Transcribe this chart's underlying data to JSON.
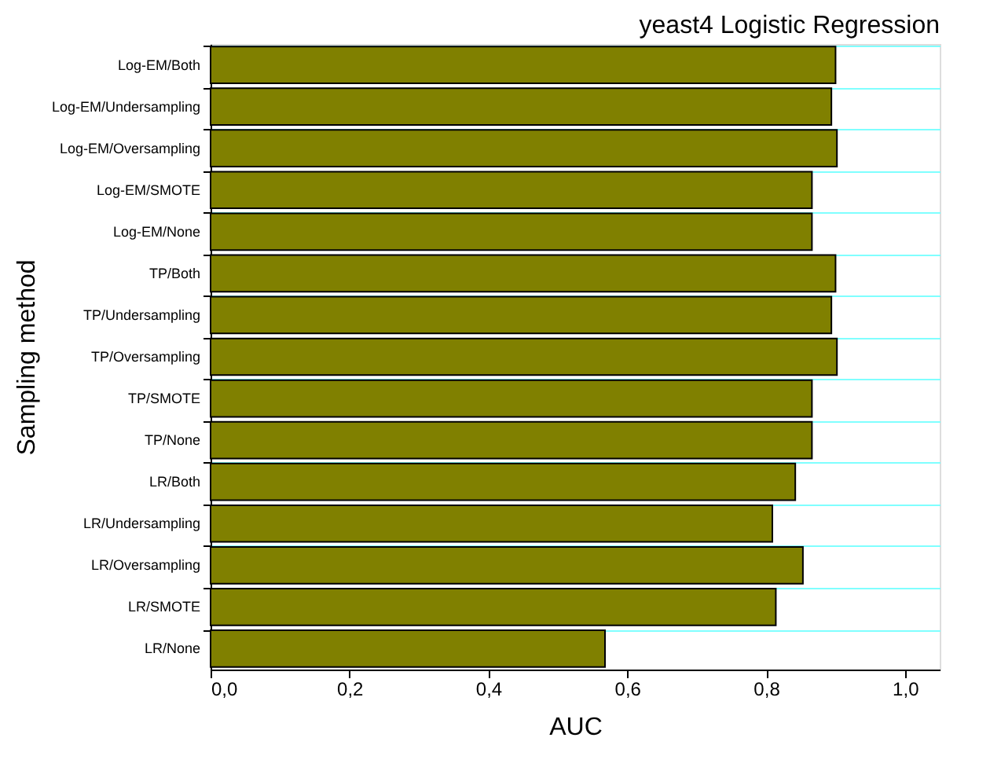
{
  "chart_data": {
    "type": "bar",
    "orientation": "horizontal",
    "title": "yeast4 Logistic Regression",
    "xlabel": "AUC",
    "ylabel": "Sampling method",
    "categories": [
      "Log-EM/Both",
      "Log-EM/Undersampling",
      "Log-EM/Oversampling",
      "Log-EM/SMOTE",
      "Log-EM/None",
      "TP/Both",
      "TP/Undersampling",
      "TP/Oversampling",
      "TP/SMOTE",
      "TP/None",
      "LR/Both",
      "LR/Undersampling",
      "LR/Oversampling",
      "LR/SMOTE",
      "LR/None"
    ],
    "values": [
      0.9,
      0.894,
      0.902,
      0.866,
      0.866,
      0.9,
      0.894,
      0.902,
      0.866,
      0.866,
      0.842,
      0.809,
      0.853,
      0.814,
      0.568
    ],
    "color": "#808000",
    "xlim": [
      0,
      1.05
    ],
    "xticks": [
      {
        "value": 0,
        "label": "0,0"
      },
      {
        "value": 0.2,
        "label": "0,2"
      },
      {
        "value": 0.4,
        "label": "0,4"
      },
      {
        "value": 0.6,
        "label": "0,6"
      },
      {
        "value": 0.8,
        "label": "0,8"
      },
      {
        "value": 1.0,
        "label": "1,0"
      }
    ],
    "grid": "y"
  }
}
